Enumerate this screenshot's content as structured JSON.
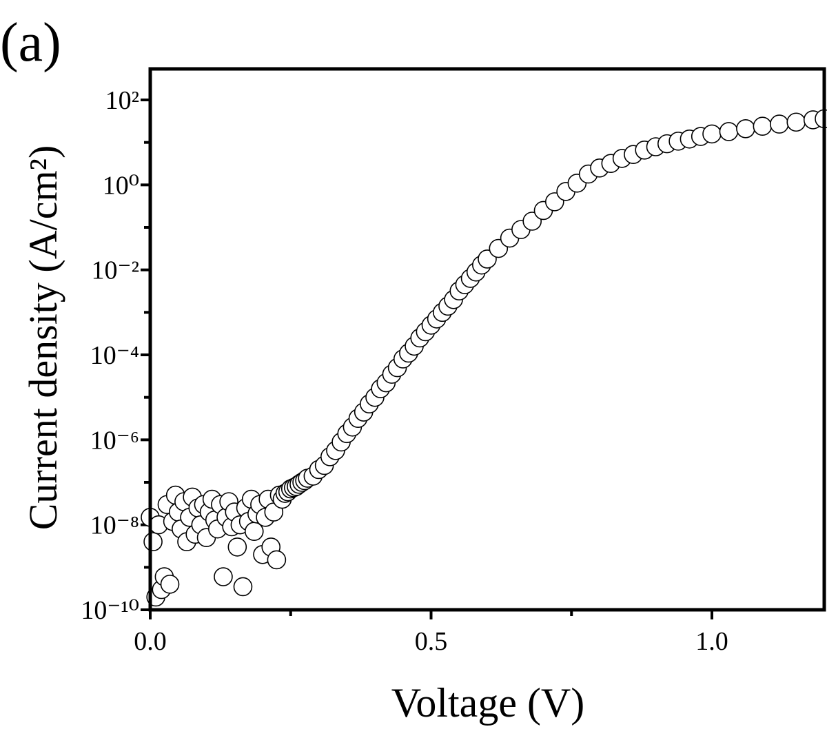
{
  "chart_data": {
    "type": "scatter",
    "panel_label": "(a)",
    "xlabel": "Voltage (V)",
    "ylabel": "Current density (A/cm²)",
    "log_y": true,
    "xlim": [
      0,
      1.2
    ],
    "ylim": [
      1e-10,
      537
    ],
    "xticks": [
      {
        "value": 0,
        "label": "0.0"
      },
      0.5,
      {
        "value": 1,
        "label": "1.0"
      }
    ],
    "xminor": [
      0.25,
      0.75
    ],
    "yticks": [
      {
        "value": 100,
        "label": "10²"
      },
      {
        "value": 1,
        "label": "10⁰"
      },
      {
        "value": 0.01,
        "label": "10⁻²"
      },
      {
        "value": 0.0001,
        "label": "10⁻⁴"
      },
      {
        "value": 1e-06,
        "label": "10⁻⁶"
      },
      {
        "value": 1e-08,
        "label": "10⁻⁸"
      },
      {
        "value": 1e-10,
        "label": "10⁻¹⁰"
      }
    ],
    "yminor": [
      10,
      0.1,
      0.001,
      1e-05,
      1e-07,
      1e-09
    ],
    "marker_color": "#ffffff",
    "edge_color": "#000000",
    "x": [
      0.0,
      0.005,
      0.01,
      0.015,
      0.02,
      0.025,
      0.03,
      0.035,
      0.04,
      0.045,
      0.05,
      0.055,
      0.06,
      0.065,
      0.07,
      0.075,
      0.08,
      0.085,
      0.09,
      0.095,
      0.1,
      0.105,
      0.11,
      0.115,
      0.12,
      0.125,
      0.13,
      0.135,
      0.14,
      0.145,
      0.15,
      0.155,
      0.16,
      0.165,
      0.17,
      0.175,
      0.18,
      0.185,
      0.19,
      0.195,
      0.2,
      0.205,
      0.21,
      0.215,
      0.22,
      0.225,
      0.23,
      0.235,
      0.24,
      0.245,
      0.25,
      0.255,
      0.26,
      0.265,
      0.27,
      0.275,
      0.28,
      0.29,
      0.3,
      0.31,
      0.32,
      0.33,
      0.34,
      0.35,
      0.36,
      0.37,
      0.38,
      0.39,
      0.4,
      0.41,
      0.42,
      0.43,
      0.44,
      0.45,
      0.46,
      0.47,
      0.48,
      0.49,
      0.5,
      0.51,
      0.52,
      0.53,
      0.54,
      0.55,
      0.56,
      0.57,
      0.58,
      0.59,
      0.6,
      0.62,
      0.64,
      0.66,
      0.68,
      0.7,
      0.72,
      0.74,
      0.76,
      0.78,
      0.8,
      0.82,
      0.84,
      0.86,
      0.88,
      0.9,
      0.92,
      0.94,
      0.96,
      0.98,
      1.0,
      1.03,
      1.06,
      1.09,
      1.12,
      1.15,
      1.18,
      1.2
    ],
    "values": [
      1.5e-08,
      4e-09,
      2e-10,
      1e-08,
      3e-10,
      6e-10,
      3e-08,
      4e-10,
      1.2e-08,
      5e-08,
      2e-08,
      8e-09,
      3.5e-08,
      4e-09,
      1.5e-08,
      4.5e-08,
      6e-09,
      2.5e-08,
      1e-08,
      3e-08,
      5e-09,
      2e-08,
      4e-08,
      1.3e-08,
      8e-09,
      3e-08,
      6e-10,
      1.5e-08,
      3.5e-08,
      9e-09,
      2e-08,
      3e-09,
      1e-08,
      3.5e-10,
      2.5e-08,
      1.2e-08,
      4e-08,
      7e-09,
      1.8e-08,
      3e-08,
      2e-09,
      1.5e-08,
      4e-08,
      3e-09,
      2e-08,
      1.5e-09,
      5e-08,
      4e-08,
      5.5e-08,
      6e-08,
      7e-08,
      7.5e-08,
      8e-08,
      9e-08,
      1e-07,
      1.1e-07,
      1.25e-07,
      1.4e-07,
      2e-07,
      2.5e-07,
      4e-07,
      5.6e-07,
      8.9e-07,
      1.4e-06,
      2e-06,
      3.2e-06,
      4.5e-06,
      7e-06,
      1e-05,
      1.6e-05,
      2.2e-05,
      3.5e-05,
      5e-05,
      8e-05,
      0.00011,
      0.00016,
      0.00025,
      0.00035,
      0.0005,
      0.0007,
      0.001,
      0.0014,
      0.002,
      0.0032,
      0.0045,
      0.0063,
      0.0089,
      0.013,
      0.018,
      0.032,
      0.056,
      0.089,
      0.14,
      0.25,
      0.4,
      0.7,
      1.1,
      1.8,
      2.5,
      3.2,
      4.2,
      5.2,
      6.6,
      7.9,
      9.3,
      10.7,
      12,
      13.8,
      15.8,
      18,
      21,
      24,
      27,
      30,
      34,
      36
    ]
  }
}
